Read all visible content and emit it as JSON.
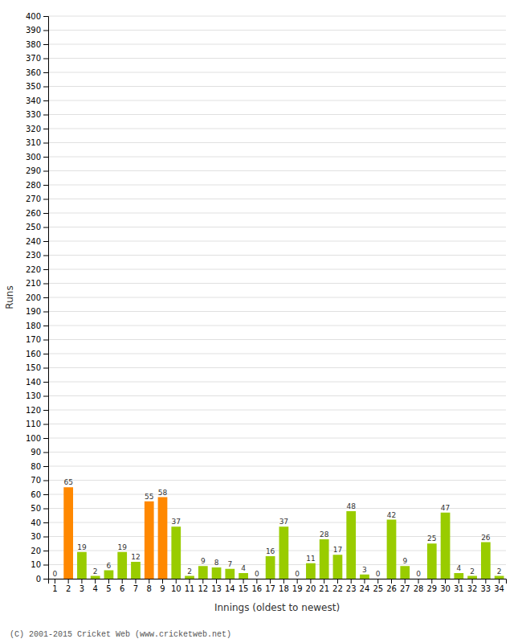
{
  "chart_data": {
    "type": "bar",
    "xlabel": "Innings (oldest to newest)",
    "ylabel": "Runs",
    "categories": [
      1,
      2,
      3,
      4,
      5,
      6,
      7,
      8,
      9,
      10,
      11,
      12,
      13,
      14,
      15,
      16,
      17,
      18,
      19,
      20,
      21,
      22,
      23,
      24,
      25,
      26,
      27,
      28,
      29,
      30,
      31,
      32,
      33,
      34
    ],
    "values": [
      0,
      65,
      19,
      2,
      6,
      19,
      12,
      55,
      58,
      37,
      2,
      9,
      8,
      7,
      4,
      0,
      16,
      37,
      0,
      11,
      28,
      17,
      48,
      3,
      0,
      42,
      9,
      0,
      25,
      47,
      4,
      2,
      26,
      2
    ],
    "colors": [
      "#99cc00",
      "#ff8800",
      "#99cc00",
      "#99cc00",
      "#99cc00",
      "#99cc00",
      "#99cc00",
      "#ff8800",
      "#ff8800",
      "#99cc00",
      "#99cc00",
      "#99cc00",
      "#99cc00",
      "#99cc00",
      "#99cc00",
      "#99cc00",
      "#99cc00",
      "#99cc00",
      "#99cc00",
      "#99cc00",
      "#99cc00",
      "#99cc00",
      "#99cc00",
      "#99cc00",
      "#99cc00",
      "#99cc00",
      "#99cc00",
      "#99cc00",
      "#99cc00",
      "#99cc00",
      "#99cc00",
      "#99cc00",
      "#99cc00",
      "#99cc00"
    ],
    "ylim": [
      0,
      400
    ],
    "yticks": [
      0,
      10,
      20,
      30,
      40,
      50,
      60,
      70,
      80,
      90,
      100,
      110,
      120,
      130,
      140,
      150,
      160,
      170,
      180,
      190,
      200,
      210,
      220,
      230,
      240,
      250,
      260,
      270,
      280,
      290,
      300,
      310,
      320,
      330,
      340,
      350,
      360,
      370,
      380,
      390,
      400
    ],
    "grid": true,
    "data_labels": true,
    "annotations": [
      "(C) 2001-2015 Cricket Web (www.cricketweb.net)"
    ]
  }
}
